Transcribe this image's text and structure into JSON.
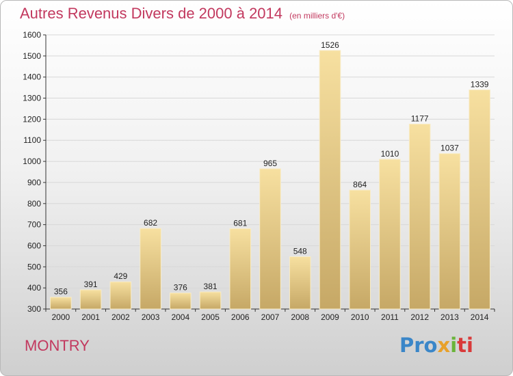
{
  "title": "Autres Revenus Divers de 2000 à 2014",
  "subtitle": "(en milliers d'€)",
  "town": "MONTRY",
  "logo": {
    "text": "Proxiti",
    "part1": "Pro",
    "part2": "x",
    "part3": "i",
    "part4": "ti"
  },
  "colors": {
    "title": "#c2385e",
    "bar_light": "#f5dc9a",
    "bar_dark": "#c9ad6a",
    "axis": "#333333"
  },
  "chart_data": {
    "type": "bar",
    "title": "Autres Revenus Divers de 2000 à 2014",
    "subtitle": "(en milliers d'€)",
    "categories": [
      "2000",
      "2001",
      "2002",
      "2003",
      "2004",
      "2005",
      "2006",
      "2007",
      "2008",
      "2009",
      "2010",
      "2011",
      "2012",
      "2013",
      "2014"
    ],
    "values": [
      356,
      391,
      429,
      682,
      376,
      381,
      681,
      965,
      548,
      1526,
      864,
      1010,
      1177,
      1037,
      1339
    ],
    "ylim": [
      300,
      1600
    ],
    "yticks": [
      300,
      400,
      500,
      600,
      700,
      800,
      900,
      1000,
      1100,
      1200,
      1300,
      1400,
      1500,
      1600
    ],
    "grid": true,
    "legend": "none"
  }
}
